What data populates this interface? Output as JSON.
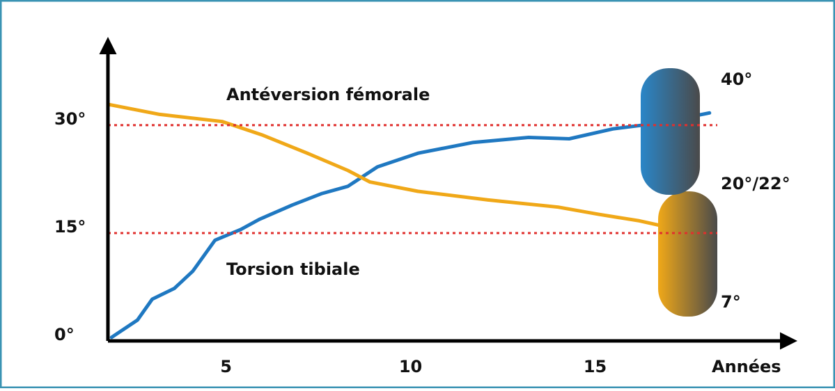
{
  "chart_data": {
    "type": "line",
    "xlim": [
      1.8,
      20.5
    ],
    "xticks": [
      5,
      10,
      15
    ],
    "xlabel": "Années",
    "ylim": [
      0,
      41.6
    ],
    "yticks": [
      {
        "value": 0,
        "label": "0°"
      },
      {
        "value": 15,
        "label": "15°"
      },
      {
        "value": 30,
        "label": "30°"
      }
    ],
    "grid": true,
    "grid_color": "#e0302e",
    "series": [
      {
        "name": "Torsion tibiale",
        "color": "#1f78c1",
        "x": [
          1.9,
          2.6,
          3.0,
          3.6,
          4.1,
          4.7,
          5.4,
          5.9,
          6.8,
          7.6,
          8.3,
          9.1,
          10.2,
          11.7,
          13.2,
          14.3,
          15.5,
          16.6,
          18.1
        ],
        "values": [
          0.5,
          2.9,
          5.8,
          7.3,
          9.7,
          14.0,
          15.5,
          16.9,
          18.9,
          20.5,
          21.5,
          24.2,
          26.1,
          27.6,
          28.3,
          28.1,
          29.5,
          30.2,
          31.7
        ]
      },
      {
        "name": "Antéversion fémorale",
        "color": "#f0a818",
        "x": [
          1.8,
          3.2,
          4.9,
          6.0,
          7.2,
          8.3,
          8.9,
          10.2,
          12.1,
          14.0,
          15.1,
          16.2,
          17.7
        ],
        "values": [
          32.9,
          31.5,
          30.5,
          28.6,
          26.1,
          23.7,
          22.1,
          20.8,
          19.6,
          18.6,
          17.6,
          16.7,
          15.0
        ]
      }
    ],
    "annotations": [
      "40°",
      "20°/22°",
      "7°"
    ]
  }
}
